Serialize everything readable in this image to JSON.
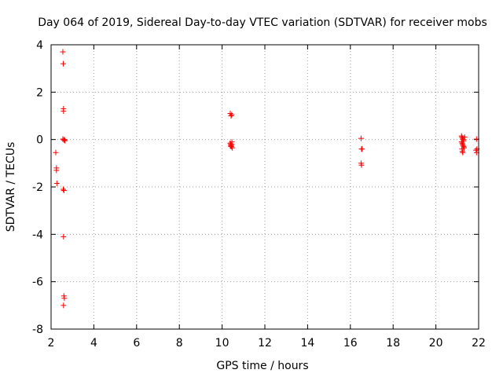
{
  "chart_data": {
    "type": "scatter",
    "title": "Day 064 of 2019, Sidereal Day-to-day VTEC variation (SDTVAR) for receiver mobs",
    "xlabel": "GPS time / hours",
    "ylabel": "SDTVAR / TECUs",
    "xlim": [
      2,
      22
    ],
    "ylim": [
      -8,
      4
    ],
    "xticks": [
      2,
      4,
      6,
      8,
      10,
      12,
      14,
      16,
      18,
      20,
      22
    ],
    "yticks": [
      -8,
      -6,
      -4,
      -2,
      0,
      2,
      4
    ],
    "grid": true,
    "marker": "+",
    "series": [
      {
        "name": "SDTVAR",
        "color": "#ff0000",
        "points": [
          [
            2.22,
            -0.55
          ],
          [
            2.25,
            -1.2
          ],
          [
            2.25,
            -1.3
          ],
          [
            2.27,
            -1.85
          ],
          [
            2.55,
            3.7
          ],
          [
            2.57,
            3.2
          ],
          [
            2.58,
            1.3
          ],
          [
            2.58,
            1.2
          ],
          [
            2.55,
            0.02
          ],
          [
            2.6,
            -0.02
          ],
          [
            2.62,
            0.0
          ],
          [
            2.65,
            -0.05
          ],
          [
            2.57,
            -2.1
          ],
          [
            2.6,
            -2.15
          ],
          [
            2.58,
            -4.1
          ],
          [
            2.6,
            -6.6
          ],
          [
            2.62,
            -6.7
          ],
          [
            2.58,
            -7.0
          ],
          [
            10.38,
            1.1
          ],
          [
            10.42,
            1.0
          ],
          [
            10.45,
            1.05
          ],
          [
            10.38,
            -0.15
          ],
          [
            10.4,
            -0.2
          ],
          [
            10.42,
            -0.25
          ],
          [
            10.44,
            -0.3
          ],
          [
            10.46,
            -0.1
          ],
          [
            10.48,
            -0.35
          ],
          [
            10.4,
            -0.28
          ],
          [
            10.45,
            -0.2
          ],
          [
            16.5,
            0.05
          ],
          [
            16.52,
            -0.4
          ],
          [
            16.55,
            -0.4
          ],
          [
            16.5,
            -1.0
          ],
          [
            16.52,
            -1.08
          ],
          [
            21.2,
            0.15
          ],
          [
            21.22,
            0.1
          ],
          [
            21.25,
            0.05
          ],
          [
            21.28,
            0.0
          ],
          [
            21.3,
            -0.05
          ],
          [
            21.2,
            -0.1
          ],
          [
            21.23,
            -0.15
          ],
          [
            21.25,
            -0.2
          ],
          [
            21.27,
            -0.25
          ],
          [
            21.3,
            -0.3
          ],
          [
            21.22,
            -0.4
          ],
          [
            21.24,
            -0.5
          ],
          [
            21.26,
            -0.55
          ],
          [
            21.35,
            0.1
          ],
          [
            21.32,
            -0.35
          ],
          [
            21.9,
            0.02
          ],
          [
            21.92,
            -0.4
          ],
          [
            21.88,
            -0.45
          ],
          [
            21.9,
            -0.55
          ]
        ]
      }
    ]
  }
}
